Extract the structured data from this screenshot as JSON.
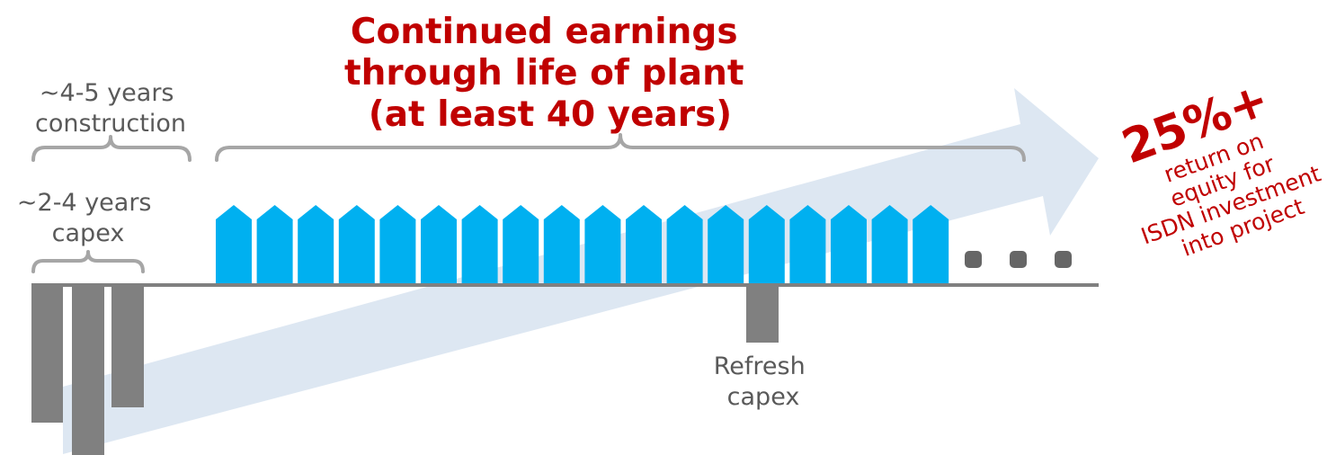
{
  "construction_label": [
    "~4-5 years",
    "construction"
  ],
  "capex_label": [
    "~2-4 years",
    "capex"
  ],
  "earnings_label": [
    "Continued earnings",
    "through life of plant",
    "(at least 40 years)"
  ],
  "return_headline": "25%+",
  "return_text": [
    "return on",
    "equity for",
    "ISDN investment",
    "into project"
  ],
  "refresh_label": [
    "Refresh",
    "capex"
  ]
}
